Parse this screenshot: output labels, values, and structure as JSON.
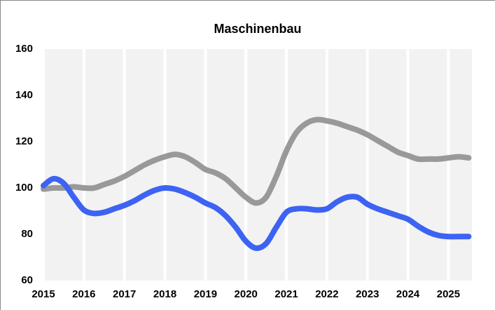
{
  "chart_data": {
    "type": "line",
    "title": "Maschinenbau",
    "x": [
      2015,
      2015.25,
      2015.5,
      2015.75,
      2016,
      2016.25,
      2016.5,
      2016.75,
      2017,
      2017.25,
      2017.5,
      2017.75,
      2018,
      2018.25,
      2018.5,
      2018.75,
      2019,
      2019.25,
      2019.5,
      2019.75,
      2020,
      2020.25,
      2020.5,
      2020.75,
      2021,
      2021.25,
      2021.5,
      2021.75,
      2022,
      2022.25,
      2022.5,
      2022.75,
      2023,
      2023.25,
      2023.5,
      2023.75,
      2024,
      2024.25,
      2024.5,
      2024.75,
      2025,
      2025.25,
      2025.5
    ],
    "series": [
      {
        "color": "#999999",
        "values": [
          99.5,
          100,
          100,
          100.5,
          100,
          100,
          101.5,
          103,
          105,
          107.5,
          110,
          112,
          113.5,
          114.5,
          113.5,
          111,
          108,
          106.5,
          104,
          100,
          96,
          93.5,
          96,
          105,
          116,
          124,
          128,
          129.5,
          129,
          128,
          126.5,
          125,
          123,
          120.5,
          118,
          115.5,
          114,
          112.5,
          112.5,
          112.5,
          113,
          113.5,
          113
        ]
      },
      {
        "color": "#3d63f2",
        "values": [
          101,
          104,
          102,
          96,
          90.5,
          89,
          89.5,
          91,
          92.5,
          94.5,
          97,
          99,
          100,
          99.5,
          98,
          96,
          93.5,
          91.5,
          88,
          83,
          77,
          74,
          76,
          83,
          89.5,
          91,
          91,
          90.5,
          91,
          94,
          96,
          96,
          93,
          91,
          89.5,
          88,
          86.5,
          83.5,
          81,
          79.5,
          79,
          79,
          79
        ]
      }
    ],
    "xlim": [
      2015,
      2025.58
    ],
    "xticks": [
      2015,
      2016,
      2017,
      2018,
      2019,
      2020,
      2021,
      2022,
      2023,
      2024,
      2025
    ],
    "ylim": [
      60,
      160
    ],
    "yticks": [
      60,
      80,
      100,
      120,
      140,
      160
    ],
    "grid": true
  }
}
